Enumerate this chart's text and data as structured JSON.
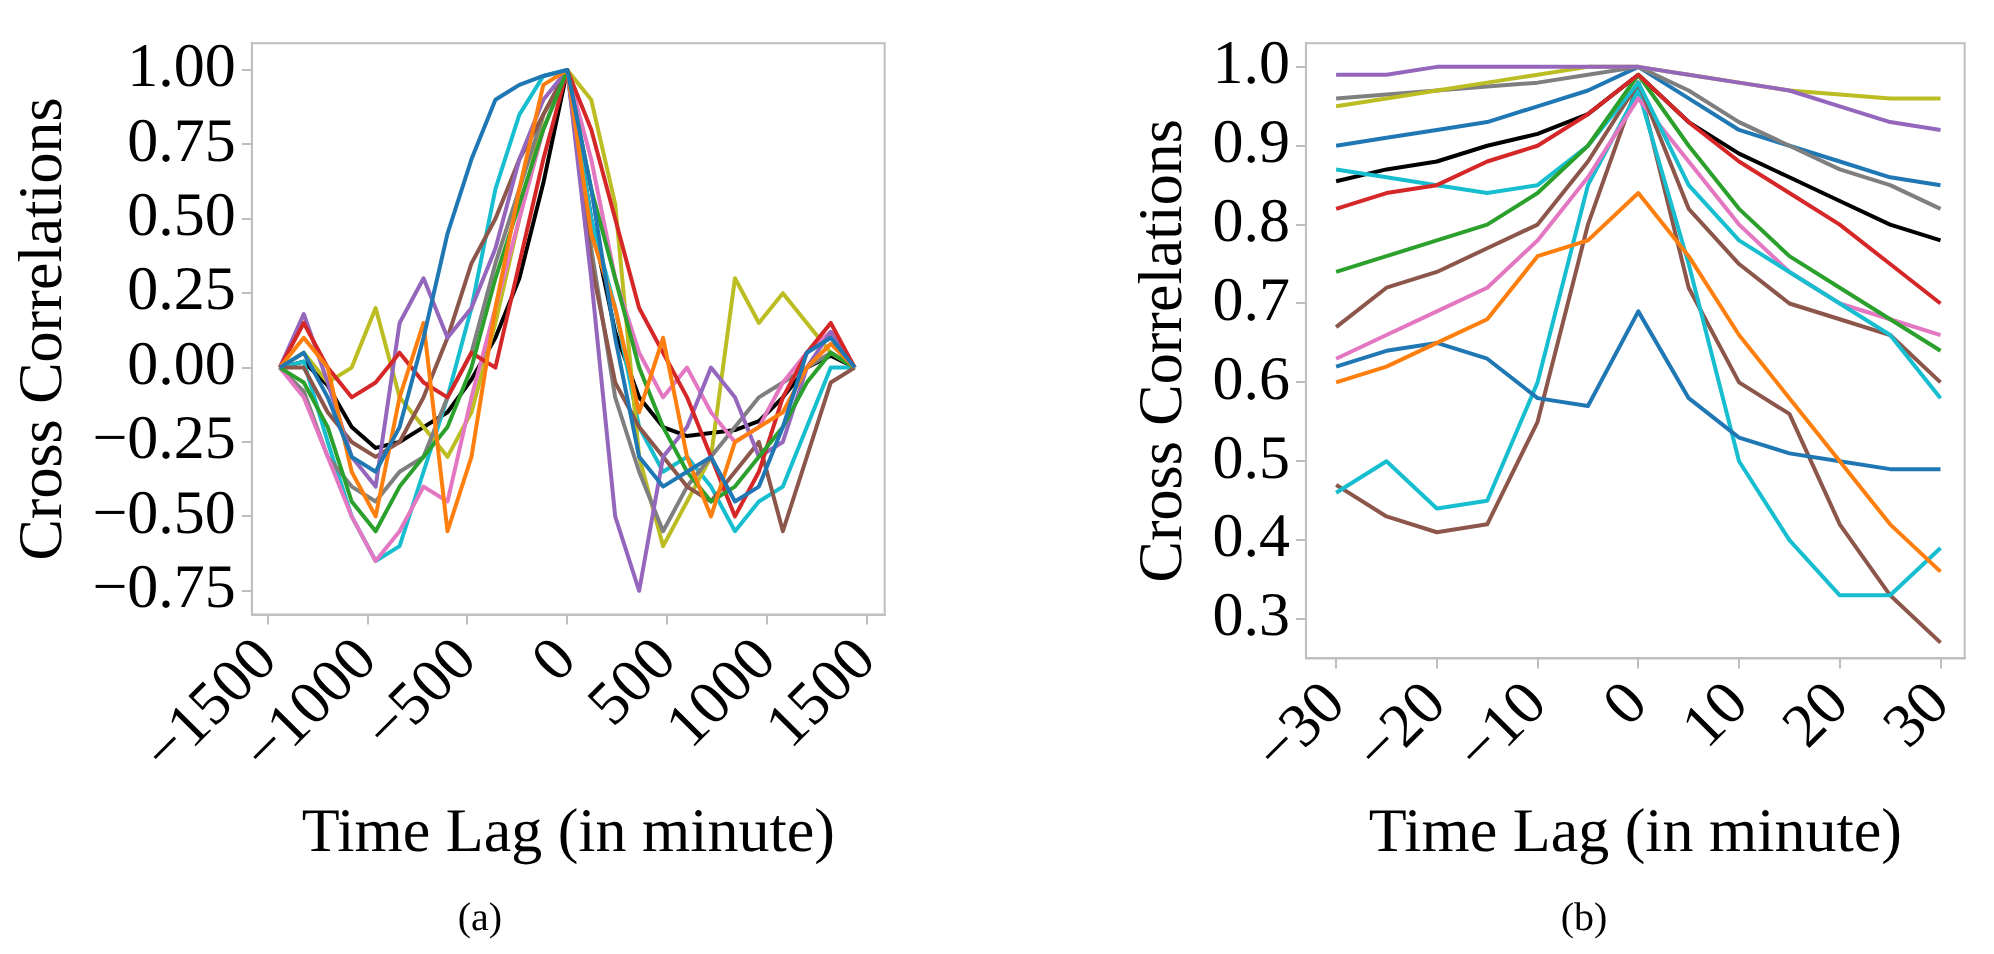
{
  "chart_data": [
    {
      "type": "line",
      "xlabel": "Time Lag (in minute)",
      "ylabel": "Cross Correlations",
      "annotations": [
        "(a)"
      ],
      "grid": false,
      "legend": false,
      "x": [
        -1440,
        -1320,
        -1200,
        -1080,
        -960,
        -840,
        -720,
        -600,
        -480,
        -360,
        -240,
        -120,
        0,
        120,
        240,
        360,
        480,
        600,
        720,
        840,
        960,
        1080,
        1200,
        1320,
        1440
      ],
      "xlim": [
        -1580,
        1590
      ],
      "ylim": [
        -0.83,
        1.09
      ],
      "xticks": [
        {
          "value": -1500,
          "label": "−1500"
        },
        {
          "value": -1000,
          "label": "−1000"
        },
        {
          "value": -500,
          "label": "−500"
        },
        0,
        500,
        1000,
        1500
      ],
      "yticks": [
        {
          "value": -0.75,
          "label": "−0.75"
        },
        {
          "value": -0.5,
          "label": "−0.50"
        },
        {
          "value": -0.25,
          "label": "−0.25"
        },
        {
          "value": 0,
          "label": "0.00"
        },
        {
          "value": 0.25,
          "label": "0.25"
        },
        {
          "value": 0.5,
          "label": "0.50"
        },
        {
          "value": 0.75,
          "label": "0.75"
        },
        {
          "value": 1,
          "label": "1.00"
        }
      ],
      "series": [
        {
          "color": "#1f77b4",
          "values": [
            0,
            0.05,
            -0.1,
            -0.3,
            -0.35,
            -0.2,
            0.1,
            0.45,
            0.7,
            0.9,
            0.95,
            0.98,
            1.0,
            0.6,
            0.1,
            -0.3,
            -0.4,
            -0.35,
            -0.3,
            -0.45,
            -0.4,
            -0.2,
            0.05,
            0.1,
            0
          ]
        },
        {
          "color": "#ff7f0e",
          "values": [
            0,
            0.1,
            0.0,
            -0.35,
            -0.5,
            -0.1,
            0.15,
            -0.55,
            -0.3,
            0.2,
            0.6,
            0.95,
            1.0,
            0.45,
            0.2,
            -0.15,
            0.1,
            -0.3,
            -0.5,
            -0.25,
            -0.2,
            -0.15,
            0.0,
            0.08,
            0
          ]
        },
        {
          "color": "#2ca02c",
          "values": [
            0,
            -0.05,
            -0.2,
            -0.45,
            -0.55,
            -0.4,
            -0.3,
            -0.2,
            0.0,
            0.3,
            0.55,
            0.8,
            1.0,
            0.6,
            0.3,
            0.0,
            -0.2,
            -0.35,
            -0.45,
            -0.4,
            -0.3,
            -0.2,
            -0.05,
            0.05,
            0
          ]
        },
        {
          "color": "#d62728",
          "values": [
            0,
            0.15,
            0.0,
            -0.1,
            -0.05,
            0.05,
            -0.05,
            -0.1,
            0.05,
            0.0,
            0.35,
            0.7,
            1.0,
            0.8,
            0.5,
            0.2,
            0.05,
            -0.1,
            -0.3,
            -0.5,
            -0.35,
            -0.1,
            0.05,
            0.15,
            0
          ]
        },
        {
          "color": "#9467bd",
          "values": [
            0,
            0.18,
            -0.05,
            -0.3,
            -0.4,
            0.15,
            0.3,
            0.1,
            0.2,
            0.4,
            0.7,
            0.9,
            1.0,
            0.3,
            -0.5,
            -0.75,
            -0.3,
            -0.2,
            0.0,
            -0.1,
            -0.3,
            -0.25,
            0.0,
            0.12,
            0
          ]
        },
        {
          "color": "#8c564b",
          "values": [
            0,
            0.0,
            -0.15,
            -0.25,
            -0.3,
            -0.25,
            -0.1,
            0.1,
            0.35,
            0.5,
            0.7,
            0.85,
            1.0,
            0.35,
            -0.05,
            -0.2,
            -0.3,
            -0.4,
            -0.45,
            -0.35,
            -0.25,
            -0.55,
            -0.3,
            -0.05,
            0
          ]
        },
        {
          "color": "#e377c2",
          "values": [
            0,
            -0.1,
            -0.3,
            -0.5,
            -0.65,
            -0.55,
            -0.4,
            -0.45,
            -0.1,
            0.2,
            0.5,
            0.8,
            1.0,
            0.7,
            0.3,
            0.05,
            -0.1,
            0.0,
            -0.15,
            -0.25,
            -0.2,
            -0.05,
            0.05,
            0.12,
            0
          ]
        },
        {
          "color": "#7f7f7f",
          "values": [
            0,
            -0.08,
            -0.3,
            -0.4,
            -0.45,
            -0.35,
            -0.3,
            -0.1,
            0.05,
            0.35,
            0.6,
            0.85,
            1.0,
            0.4,
            -0.1,
            -0.35,
            -0.55,
            -0.4,
            -0.3,
            -0.2,
            -0.1,
            -0.05,
            0.0,
            0.05,
            0
          ]
        },
        {
          "color": "#bcbd22",
          "values": [
            0,
            0.05,
            -0.05,
            0.0,
            0.2,
            -0.1,
            -0.2,
            -0.3,
            -0.15,
            0.15,
            0.5,
            0.85,
            1.0,
            0.9,
            0.55,
            -0.3,
            -0.6,
            -0.45,
            -0.3,
            0.3,
            0.15,
            0.25,
            0.15,
            0.05,
            0
          ]
        },
        {
          "color": "#17becf",
          "values": [
            0,
            0.02,
            -0.25,
            -0.5,
            -0.65,
            -0.6,
            -0.35,
            -0.1,
            0.2,
            0.6,
            0.85,
            0.98,
            1.0,
            0.5,
            0.2,
            -0.2,
            -0.35,
            -0.3,
            -0.4,
            -0.55,
            -0.45,
            -0.4,
            -0.2,
            0.0,
            0
          ]
        },
        {
          "color": "#000000",
          "values": [
            0,
            0.02,
            -0.06,
            -0.2,
            -0.27,
            -0.25,
            -0.2,
            -0.15,
            -0.04,
            0.1,
            0.3,
            0.62,
            1.0,
            0.5,
            0.12,
            -0.1,
            -0.2,
            -0.23,
            -0.22,
            -0.21,
            -0.18,
            -0.1,
            0.0,
            0.04,
            0
          ]
        }
      ]
    },
    {
      "type": "line",
      "xlabel": "Time Lag (in minute)",
      "ylabel": "Cross Correlations",
      "annotations": [
        "(b)"
      ],
      "grid": false,
      "legend": false,
      "x": [
        -30,
        -25,
        -20,
        -15,
        -10,
        -5,
        0,
        5,
        10,
        15,
        20,
        25,
        30
      ],
      "xlim": [
        -33,
        32.4
      ],
      "ylim": [
        0.25,
        1.03
      ],
      "xticks": [
        {
          "value": -30,
          "label": "−30"
        },
        {
          "value": -20,
          "label": "−20"
        },
        {
          "value": -10,
          "label": "−10"
        },
        0,
        10,
        20,
        30
      ],
      "yticks": [
        {
          "value": 0.3,
          "label": "0.3"
        },
        {
          "value": 0.4,
          "label": "0.4"
        },
        {
          "value": 0.5,
          "label": "0.5"
        },
        {
          "value": 0.6,
          "label": "0.6"
        },
        {
          "value": 0.7,
          "label": "0.7"
        },
        {
          "value": 0.8,
          "label": "0.8"
        },
        {
          "value": 0.9,
          "label": "0.9"
        },
        {
          "value": 1,
          "label": "1.0"
        }
      ],
      "series": [
        {
          "color": "#9467bd",
          "values": [
            0.99,
            0.99,
            1.0,
            1.0,
            1.0,
            1.0,
            1.0,
            0.99,
            0.98,
            0.97,
            0.95,
            0.93,
            0.92
          ]
        },
        {
          "color": "#bcbd22",
          "values": [
            0.95,
            0.96,
            0.97,
            0.98,
            0.99,
            1.0,
            1.0,
            0.99,
            0.98,
            0.97,
            0.965,
            0.96,
            0.96
          ]
        },
        {
          "color": "#7f7f7f",
          "values": [
            0.96,
            0.965,
            0.97,
            0.975,
            0.98,
            0.99,
            1.0,
            0.97,
            0.93,
            0.9,
            0.87,
            0.85,
            0.82
          ]
        },
        {
          "color": "#1f77b4",
          "values": [
            0.9,
            0.91,
            0.92,
            0.93,
            0.95,
            0.97,
            1.0,
            0.96,
            0.92,
            0.9,
            0.88,
            0.86,
            0.85
          ]
        },
        {
          "color": "#d62728",
          "values": [
            0.82,
            0.84,
            0.85,
            0.88,
            0.9,
            0.94,
            0.99,
            0.93,
            0.88,
            0.84,
            0.8,
            0.75,
            0.7
          ]
        },
        {
          "color": "#2ca02c",
          "values": [
            0.74,
            0.76,
            0.78,
            0.8,
            0.84,
            0.9,
            0.99,
            0.9,
            0.82,
            0.76,
            0.72,
            0.68,
            0.64
          ]
        },
        {
          "color": "#17becf",
          "values": [
            0.87,
            0.86,
            0.85,
            0.84,
            0.85,
            0.9,
            0.98,
            0.85,
            0.78,
            0.74,
            0.7,
            0.66,
            0.58
          ]
        },
        {
          "color": "#8c564b",
          "values": [
            0.67,
            0.72,
            0.74,
            0.77,
            0.8,
            0.88,
            0.98,
            0.82,
            0.75,
            0.7,
            0.68,
            0.66,
            0.6
          ]
        },
        {
          "color": "#e377c2",
          "values": [
            0.63,
            0.66,
            0.69,
            0.72,
            0.78,
            0.86,
            0.96,
            0.88,
            0.8,
            0.74,
            0.7,
            0.68,
            0.66
          ]
        },
        {
          "color": "#ff7f0e",
          "values": [
            0.6,
            0.62,
            0.65,
            0.68,
            0.76,
            0.78,
            0.84,
            0.76,
            0.66,
            0.58,
            0.5,
            0.42,
            0.36
          ]
        },
        {
          "color": "#1f77b4",
          "values": [
            0.62,
            0.64,
            0.65,
            0.63,
            0.58,
            0.57,
            0.69,
            0.58,
            0.53,
            0.51,
            0.5,
            0.49,
            0.49
          ]
        },
        {
          "color": "#17becf",
          "values": [
            0.46,
            0.5,
            0.44,
            0.45,
            0.6,
            0.85,
            0.97,
            0.75,
            0.5,
            0.4,
            0.33,
            0.33,
            0.39
          ]
        },
        {
          "color": "#8c564b",
          "values": [
            0.47,
            0.43,
            0.41,
            0.42,
            0.55,
            0.8,
            0.98,
            0.72,
            0.6,
            0.56,
            0.42,
            0.33,
            0.27
          ]
        },
        {
          "color": "#000000",
          "values": [
            0.855,
            0.87,
            0.88,
            0.9,
            0.915,
            0.94,
            0.99,
            0.93,
            0.89,
            0.86,
            0.83,
            0.8,
            0.78
          ]
        }
      ]
    }
  ]
}
